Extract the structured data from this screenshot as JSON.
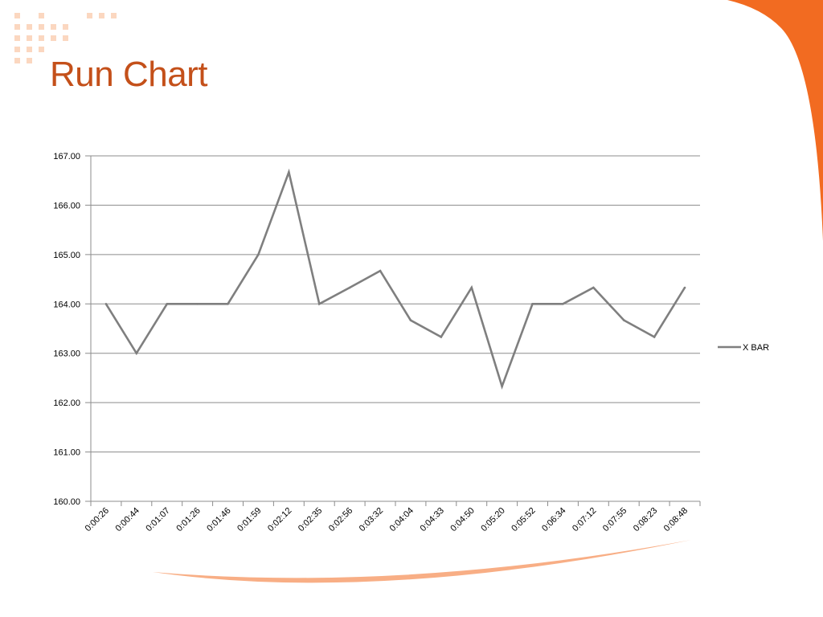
{
  "slide": {
    "title": "Run Chart",
    "title_color": "#c4501a",
    "accent_color": "#f26b21",
    "dot_color": "#fbd7c0"
  },
  "chart_data": {
    "type": "line",
    "title": "",
    "xlabel": "",
    "ylabel": "",
    "categories": [
      "0:00:26",
      "0:00:44",
      "0:01:07",
      "0:01:26",
      "0:01:46",
      "0:01:59",
      "0:02:12",
      "0:02:35",
      "0:02:56",
      "0:03:32",
      "0:04:04",
      "0:04:33",
      "0:04:50",
      "0:05:20",
      "0:05:52",
      "0:06:34",
      "0:07:12",
      "0:07:55",
      "0:08:23",
      "0:08:48"
    ],
    "series": [
      {
        "name": "X BAR",
        "color": "#7f7f7f",
        "values": [
          164.0,
          163.0,
          164.0,
          164.0,
          164.0,
          165.0,
          166.67,
          164.0,
          164.33,
          164.67,
          163.67,
          163.33,
          164.33,
          162.33,
          164.0,
          164.0,
          164.33,
          163.67,
          163.33,
          164.33
        ]
      }
    ],
    "ylim": [
      160,
      167
    ],
    "yticks": [
      "160.00",
      "161.00",
      "162.00",
      "163.00",
      "164.00",
      "165.00",
      "166.00",
      "167.00"
    ],
    "grid": true,
    "legend_position": "right"
  }
}
